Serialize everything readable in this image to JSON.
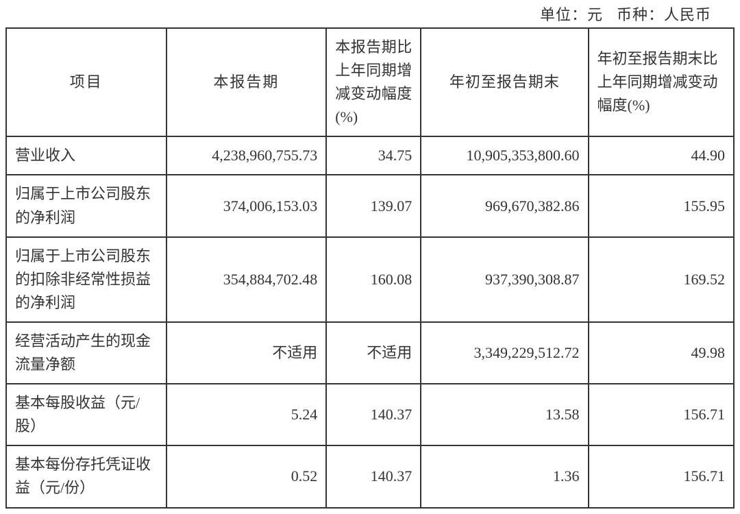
{
  "header": {
    "unit_label": "单位：元",
    "currency_label": "币种：人民币"
  },
  "table": {
    "columns": [
      {
        "key": "item",
        "label": "项目"
      },
      {
        "key": "current",
        "label": "本报告期"
      },
      {
        "key": "change_pct",
        "label": "本报告期比上年同期增减变动幅度(%)"
      },
      {
        "key": "ytd",
        "label": "年初至报告期末"
      },
      {
        "key": "ytd_change_pct",
        "label": "年初至报告期末比上年同期增减变动幅度(%)"
      }
    ],
    "rows": [
      {
        "item": "营业收入",
        "current": "4,238,960,755.73",
        "change_pct": "34.75",
        "ytd": "10,905,353,800.60",
        "ytd_change_pct": "44.90"
      },
      {
        "item": "归属于上市公司股东的净利润",
        "current": "374,006,153.03",
        "change_pct": "139.07",
        "ytd": "969,670,382.86",
        "ytd_change_pct": "155.95"
      },
      {
        "item": "归属于上市公司股东的扣除非经常性损益的净利润",
        "current": "354,884,702.48",
        "change_pct": "160.08",
        "ytd": "937,390,308.87",
        "ytd_change_pct": "169.52"
      },
      {
        "item": "经营活动产生的现金流量净额",
        "current": "不适用",
        "change_pct": "不适用",
        "ytd": "3,349,229,512.72",
        "ytd_change_pct": "49.98"
      },
      {
        "item": "基本每股收益（元/股）",
        "current": "5.24",
        "change_pct": "140.37",
        "ytd": "13.58",
        "ytd_change_pct": "156.71"
      },
      {
        "item": "基本每份存托凭证收益（元/份）",
        "current": "0.52",
        "change_pct": "140.37",
        "ytd": "1.36",
        "ytd_change_pct": "156.71"
      }
    ],
    "border_color": "#333333",
    "text_color": "#333333",
    "background_color": "#ffffff",
    "font_size_pt": 16,
    "col_widths_pct": [
      22,
      22,
      13,
      23,
      20
    ]
  }
}
